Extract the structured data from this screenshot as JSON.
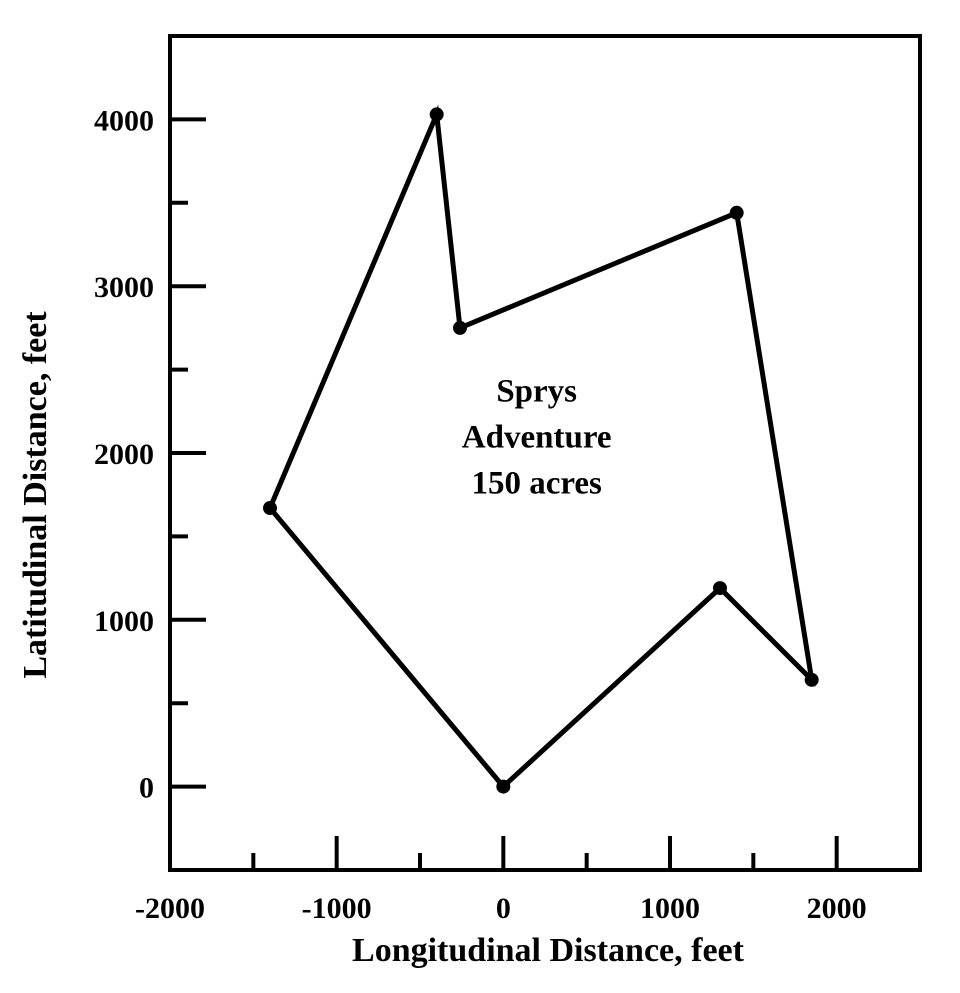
{
  "chart_data": {
    "type": "line",
    "title": "",
    "xlabel": "Longitudinal Distance, feet",
    "ylabel": "Latitudinal Distance, feet",
    "xlim": [
      -2000,
      2500
    ],
    "ylim": [
      -500,
      4500
    ],
    "grid": false,
    "x_ticks": [
      {
        "value": -2000,
        "label": "-2000"
      },
      {
        "value": -1000,
        "label": "-1000"
      },
      {
        "value": 0,
        "label": "0"
      },
      {
        "value": 1000,
        "label": "1000"
      },
      {
        "value": 2000,
        "label": "2000"
      }
    ],
    "x_minor_ticks": [
      -1500,
      -500,
      500,
      1500
    ],
    "y_ticks": [
      {
        "value": 0,
        "label": "0"
      },
      {
        "value": 1000,
        "label": "1000"
      },
      {
        "value": 2000,
        "label": "2000"
      },
      {
        "value": 3000,
        "label": "3000"
      },
      {
        "value": 4000,
        "label": "4000"
      }
    ],
    "y_minor_ticks": [
      500,
      1500,
      2500,
      3500
    ],
    "series": [
      {
        "closed": true,
        "color": "#000000",
        "points": [
          {
            "x": 0,
            "y": 0
          },
          {
            "x": -1400,
            "y": 1670
          },
          {
            "x": -400,
            "y": 4030
          },
          {
            "x": -260,
            "y": 2750
          },
          {
            "x": 1400,
            "y": 3440
          },
          {
            "x": 1850,
            "y": 640
          },
          {
            "x": 1300,
            "y": 1190
          }
        ]
      }
    ],
    "annotation": {
      "lines": [
        "Sprys",
        "Adventure",
        "150 acres"
      ],
      "x": 200,
      "y": 2100
    }
  }
}
